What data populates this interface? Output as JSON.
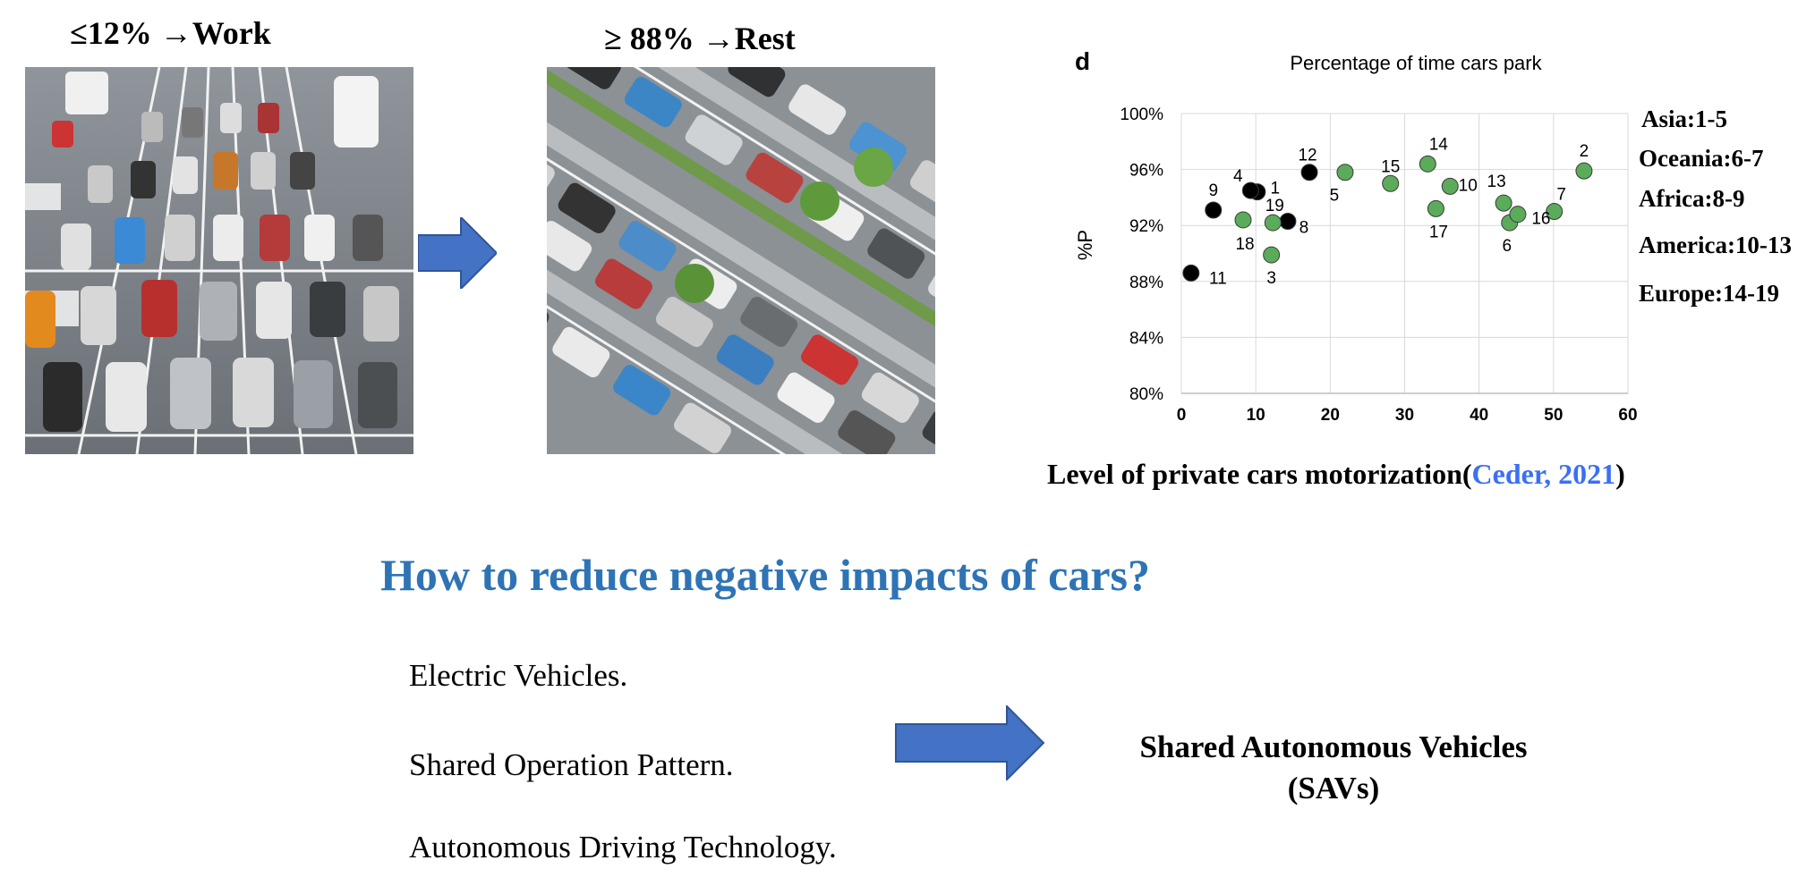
{
  "work_label": "≤12% →Work",
  "rest_label": "≥ 88% →Rest",
  "arrow_icon": "right-arrow-icon",
  "arrow_color": "#4472c4",
  "chart_data": {
    "type": "scatter",
    "panel_letter": "d",
    "title": "Percentage of time cars park",
    "xlabel": "Level of private cars motorization(",
    "xlabel_citation": "Ceder, 2021",
    "xlabel_close": ")",
    "ylabel": "%P",
    "xlim": [
      0,
      60
    ],
    "ylim": [
      80,
      100
    ],
    "x_ticks": [
      0,
      10,
      20,
      30,
      40,
      50,
      60
    ],
    "y_ticks": [
      80,
      84,
      88,
      92,
      96,
      100
    ],
    "y_tick_labels": [
      "80%",
      "84%",
      "88%",
      "92%",
      "96%",
      "100%"
    ],
    "grid": true,
    "series": [
      {
        "color": "#000000",
        "points": [
          {
            "label": "1",
            "x": 10.2,
            "y": 94.4
          },
          {
            "label": "4",
            "x": 9.3,
            "y": 94.5
          },
          {
            "label": "8",
            "x": 14.3,
            "y": 92.3
          },
          {
            "label": "9",
            "x": 4.3,
            "y": 93.1
          },
          {
            "label": "11",
            "x": 1.3,
            "y": 88.6
          },
          {
            "label": "12",
            "x": 17.2,
            "y": 95.8
          }
        ]
      },
      {
        "color": "#5aab5a",
        "points": [
          {
            "label": "2",
            "x": 54.1,
            "y": 95.9
          },
          {
            "label": "3",
            "x": 12.1,
            "y": 89.9
          },
          {
            "label": "5",
            "x": 22.0,
            "y": 95.8
          },
          {
            "label": "6",
            "x": 44.1,
            "y": 92.2
          },
          {
            "label": "7",
            "x": 50.1,
            "y": 93.0
          },
          {
            "label": "10",
            "x": 36.1,
            "y": 94.8
          },
          {
            "label": "13",
            "x": 43.3,
            "y": 93.6
          },
          {
            "label": "14",
            "x": 33.1,
            "y": 96.4
          },
          {
            "label": "15",
            "x": 28.1,
            "y": 95.0
          },
          {
            "label": "16",
            "x": 45.2,
            "y": 92.8
          },
          {
            "label": "17",
            "x": 34.2,
            "y": 93.2
          },
          {
            "label": "18",
            "x": 8.3,
            "y": 92.4
          },
          {
            "label": "19",
            "x": 12.3,
            "y": 92.2
          }
        ]
      }
    ],
    "regions": [
      "Asia:1-5",
      "Oceania:6-7",
      "Africa:8-9",
      "America:10-13",
      "Europe:14-19"
    ]
  },
  "question": "How to reduce negative impacts of cars?",
  "bullets": [
    "Electric Vehicles.",
    "Shared Operation Pattern.",
    "Autonomous Driving Technology."
  ],
  "result": {
    "line1": "Shared Autonomous Vehicles",
    "line2": "(SAVs)"
  }
}
